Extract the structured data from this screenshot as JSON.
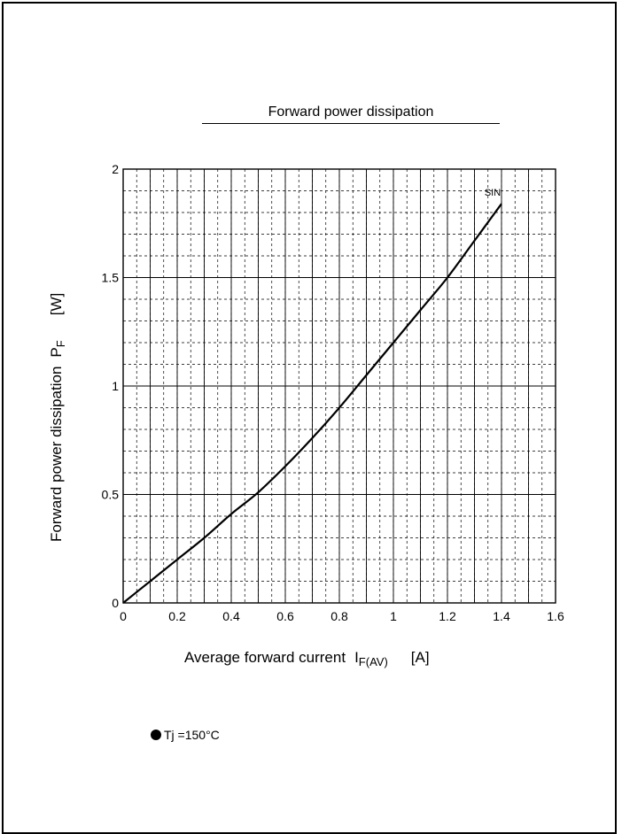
{
  "chart_data": {
    "type": "line",
    "title": "Forward power dissipation",
    "xlabel": "Average forward current",
    "xlabel_symbol": "I",
    "xlabel_subscript": "F(AV)",
    "xlabel_unit": "[A]",
    "ylabel": "Forward power dissipation",
    "ylabel_symbol": "P",
    "ylabel_subscript": "F",
    "ylabel_unit": "[W]",
    "xlim": [
      0,
      1.6
    ],
    "ylim": [
      0,
      2
    ],
    "x_ticks": [
      "0",
      "0.2",
      "0.4",
      "0.6",
      "0.8",
      "1",
      "1.2",
      "1.4",
      "1.6"
    ],
    "y_ticks": [
      "0",
      "0.5",
      "1",
      "1.5",
      "2"
    ],
    "grid": true,
    "series": [
      {
        "name": "SIN",
        "x": [
          0,
          0.1,
          0.2,
          0.3,
          0.4,
          0.5,
          0.6,
          0.7,
          0.8,
          0.9,
          1.0,
          1.1,
          1.2,
          1.3,
          1.4
        ],
        "y": [
          0,
          0.1,
          0.2,
          0.3,
          0.41,
          0.51,
          0.63,
          0.76,
          0.9,
          1.05,
          1.2,
          1.35,
          1.5,
          1.67,
          1.84
        ]
      }
    ],
    "annotation": "Tj =150°C"
  }
}
